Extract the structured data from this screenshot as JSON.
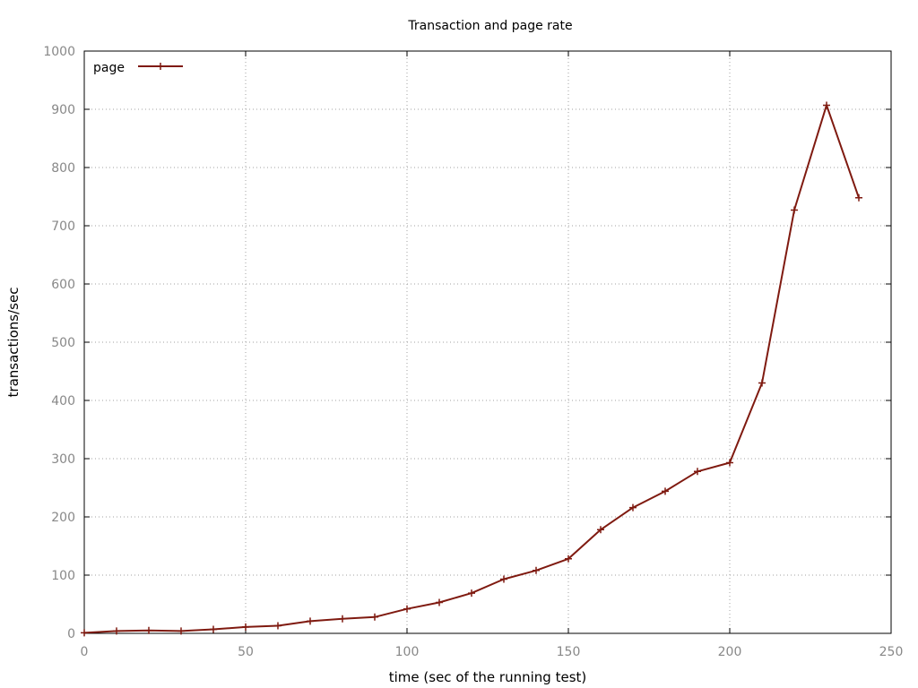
{
  "chart_data": {
    "type": "line",
    "title": "Transaction and page rate",
    "xlabel": "time (sec of the running test)",
    "ylabel": "transactions/sec",
    "xlim": [
      0,
      250
    ],
    "ylim": [
      0,
      1000
    ],
    "xticks": [
      0,
      50,
      100,
      150,
      200,
      250
    ],
    "yticks": [
      0,
      100,
      200,
      300,
      400,
      500,
      600,
      700,
      800,
      900,
      1000
    ],
    "grid": true,
    "legend_position": "top-left",
    "series": [
      {
        "name": "page",
        "color": "#7f1a10",
        "marker": "plus",
        "x": [
          0,
          10,
          20,
          30,
          40,
          50,
          60,
          70,
          80,
          90,
          100,
          110,
          120,
          130,
          140,
          150,
          160,
          170,
          180,
          190,
          200,
          210,
          220,
          230,
          240
        ],
        "y": [
          1,
          4,
          5,
          4,
          7,
          11,
          13,
          21,
          25,
          28,
          42,
          53,
          69,
          93,
          108,
          128,
          178,
          216,
          244,
          278,
          293,
          430,
          727,
          907,
          748
        ]
      }
    ]
  }
}
